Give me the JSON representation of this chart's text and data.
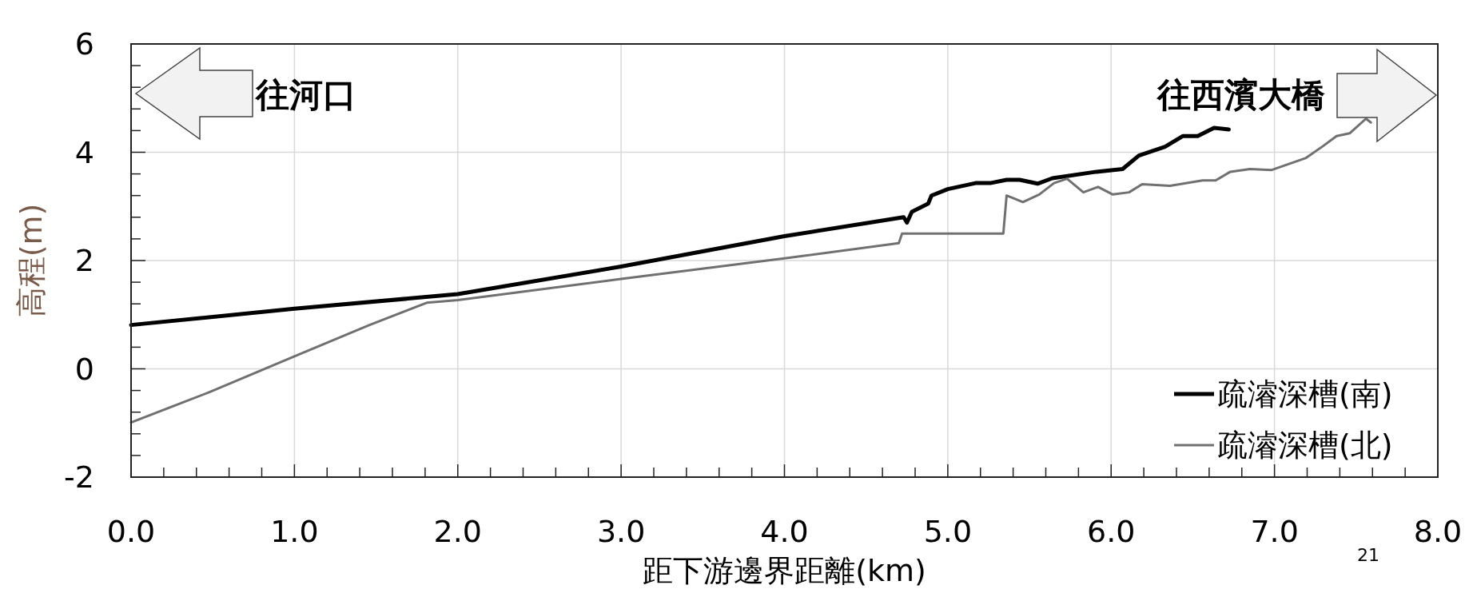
{
  "chart_data": {
    "type": "line",
    "xlabel": "距下游邊界距離(km)",
    "ylabel": "高程(m)",
    "xlim": [
      0,
      8
    ],
    "ylim": [
      -2,
      6
    ],
    "xticks": [
      {
        "value": 0,
        "label": "0.0"
      },
      {
        "value": 1,
        "label": "1.0"
      },
      {
        "value": 2,
        "label": "2.0"
      },
      {
        "value": 3,
        "label": "3.0"
      },
      {
        "value": 4,
        "label": "4.0"
      },
      {
        "value": 5,
        "label": "5.0"
      },
      {
        "value": 6,
        "label": "6.0"
      },
      {
        "value": 7,
        "label": "7.0"
      },
      {
        "value": 8,
        "label": "8.0"
      }
    ],
    "yticks": [
      -2,
      0,
      2,
      4,
      6
    ],
    "grid": true,
    "legend": "bottom right",
    "line_style": "solid",
    "series": [
      {
        "name": "疏濬深槽(南)",
        "color": "#000000",
        "x": [
          0,
          1.0,
          2.0,
          3.0,
          4.0,
          4.73,
          4.75,
          4.78,
          4.88,
          4.9,
          5.0,
          5.17,
          5.26,
          5.36,
          5.44,
          5.55,
          5.64,
          5.91,
          6.07,
          6.17,
          6.33,
          6.44,
          6.53,
          6.63,
          6.72
        ],
        "values": [
          0.81,
          1.11,
          1.38,
          1.89,
          2.45,
          2.8,
          2.7,
          2.9,
          3.05,
          3.2,
          3.32,
          3.43,
          3.43,
          3.49,
          3.49,
          3.42,
          3.52,
          3.64,
          3.69,
          3.94,
          4.1,
          4.3,
          4.3,
          4.45,
          4.42
        ]
      },
      {
        "name": "疏濬深槽(北)",
        "color": "#707070",
        "x": [
          0,
          0.48,
          1.0,
          1.46,
          1.81,
          2.0,
          3.0,
          4.0,
          4.7,
          4.72,
          5.34,
          5.36,
          5.46,
          5.56,
          5.65,
          5.73,
          5.83,
          5.92,
          6.01,
          6.11,
          6.19,
          6.36,
          6.56,
          6.64,
          6.73,
          6.85,
          6.98,
          7.19,
          7.3,
          7.38,
          7.46,
          7.56,
          7.59
        ],
        "values": [
          -0.99,
          -0.43,
          0.23,
          0.81,
          1.22,
          1.27,
          1.66,
          2.04,
          2.32,
          2.5,
          2.5,
          3.2,
          3.08,
          3.22,
          3.43,
          3.51,
          3.26,
          3.36,
          3.22,
          3.26,
          3.41,
          3.38,
          3.48,
          3.48,
          3.64,
          3.69,
          3.67,
          3.89,
          4.12,
          4.3,
          4.35,
          4.62,
          4.55
        ]
      }
    ],
    "annotations": [
      "往河口",
      "往西濱大橋",
      "21"
    ]
  }
}
